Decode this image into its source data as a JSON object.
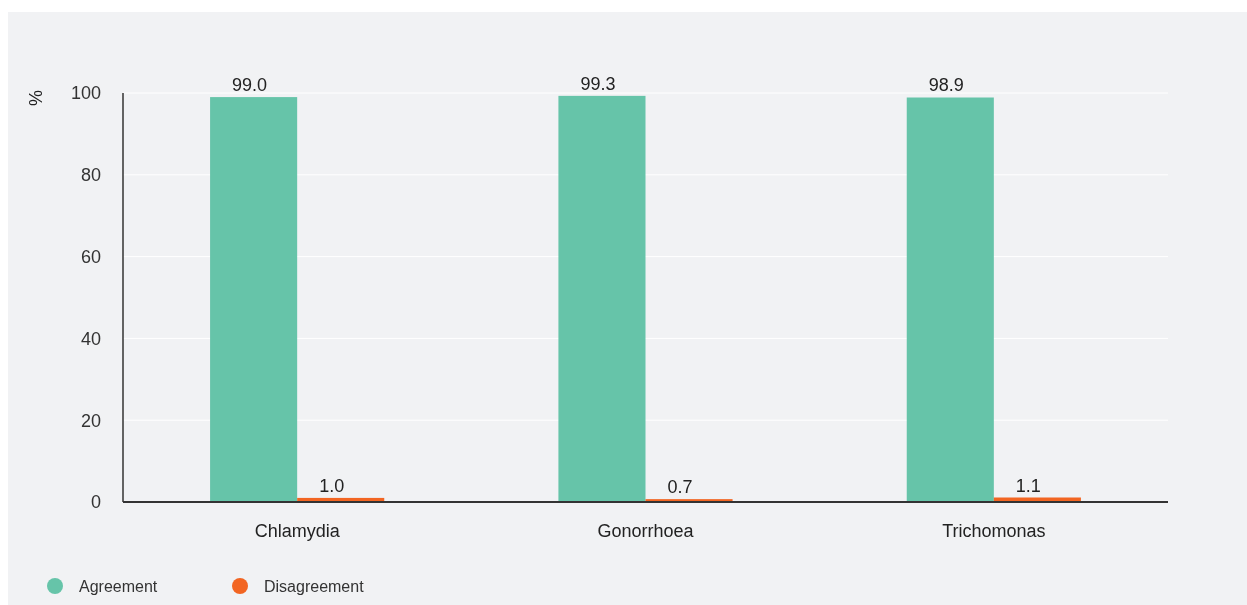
{
  "chart_data": {
    "type": "bar",
    "ylabel": "%",
    "categories": [
      "Chlamydia",
      "Gonorrhoea",
      "Trichomonas"
    ],
    "series": [
      {
        "name": "Agreement",
        "color": "#66c4a9",
        "values": [
          99.0,
          99.3,
          98.9
        ],
        "value_labels": [
          "99.0",
          "99.3",
          "98.9"
        ]
      },
      {
        "name": "Disagreement",
        "color": "#f26522",
        "values": [
          1.0,
          0.7,
          1.1
        ],
        "value_labels": [
          "1.0",
          "0.7",
          "1.1"
        ]
      }
    ],
    "ylim": [
      0,
      100
    ],
    "yticks": [
      0,
      20,
      40,
      60,
      80,
      100
    ],
    "grid": "y",
    "legend": "bottom left"
  }
}
